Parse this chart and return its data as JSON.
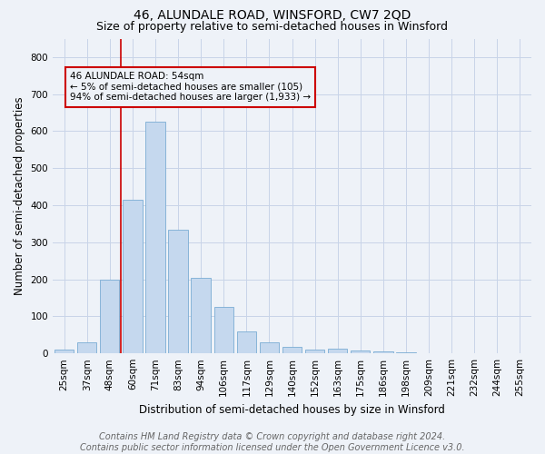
{
  "title": "46, ALUNDALE ROAD, WINSFORD, CW7 2QD",
  "subtitle": "Size of property relative to semi-detached houses in Winsford",
  "xlabel": "Distribution of semi-detached houses by size in Winsford",
  "ylabel": "Number of semi-detached properties",
  "footer_line1": "Contains HM Land Registry data © Crown copyright and database right 2024.",
  "footer_line2": "Contains public sector information licensed under the Open Government Licence v3.0.",
  "bin_labels": [
    "25sqm",
    "37sqm",
    "48sqm",
    "60sqm",
    "71sqm",
    "83sqm",
    "94sqm",
    "106sqm",
    "117sqm",
    "129sqm",
    "140sqm",
    "152sqm",
    "163sqm",
    "175sqm",
    "186sqm",
    "198sqm",
    "209sqm",
    "221sqm",
    "232sqm",
    "244sqm",
    "255sqm"
  ],
  "bar_values": [
    10,
    30,
    200,
    415,
    625,
    335,
    205,
    125,
    60,
    30,
    17,
    10,
    13,
    9,
    6,
    4,
    0,
    0,
    0,
    0,
    0
  ],
  "bar_color": "#c5d8ee",
  "bar_edge_color": "#7aadd4",
  "vline_color": "#cc0000",
  "vline_index": 2.5,
  "annotation_text": "46 ALUNDALE ROAD: 54sqm\n← 5% of semi-detached houses are smaller (105)\n94% of semi-detached houses are larger (1,933) →",
  "annotation_box_edgecolor": "#cc0000",
  "ylim": [
    0,
    850
  ],
  "yticks": [
    0,
    100,
    200,
    300,
    400,
    500,
    600,
    700,
    800
  ],
  "grid_color": "#c8d4e8",
  "background_color": "#eef2f8",
  "title_fontsize": 10,
  "subtitle_fontsize": 9,
  "label_fontsize": 8.5,
  "tick_fontsize": 7.5,
  "footer_fontsize": 7,
  "ann_fontsize": 7.5
}
